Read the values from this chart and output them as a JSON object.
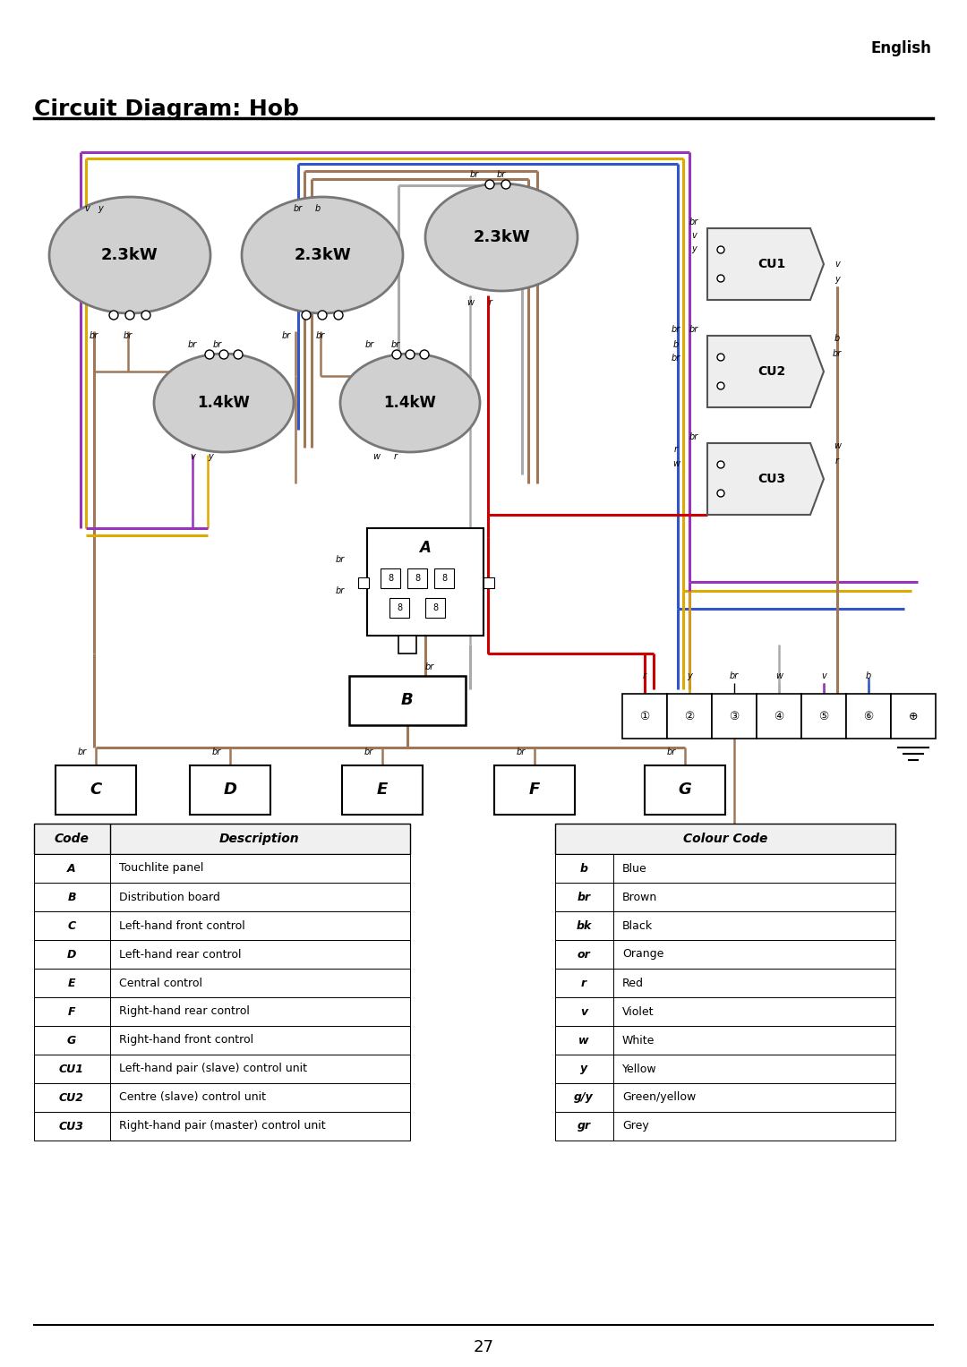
{
  "title": "Circuit Diagram: Hob",
  "lang_label": "English",
  "bg_color": "#ffffff",
  "colors": {
    "violet": "#9933BB",
    "yellow": "#DDAA00",
    "blue": "#3355CC",
    "brown": "#A07858",
    "red": "#CC0000",
    "white_wire": "#999999",
    "gray_wire": "#AAAAAA",
    "ellipse_fill": "#D0D0D0",
    "ellipse_edge": "#777777"
  },
  "code_table_rows": [
    [
      "A",
      "Touchlite panel"
    ],
    [
      "B",
      "Distribution board"
    ],
    [
      "C",
      "Left-hand front control"
    ],
    [
      "D",
      "Left-hand rear control"
    ],
    [
      "E",
      "Central control"
    ],
    [
      "F",
      "Right-hand rear control"
    ],
    [
      "G",
      "Right-hand front control"
    ],
    [
      "CU1",
      "Left-hand pair (slave) control unit"
    ],
    [
      "CU2",
      "Centre (slave) control unit"
    ],
    [
      "CU3",
      "Right-hand pair (master) control unit"
    ]
  ],
  "colour_table_rows": [
    [
      "b",
      "Blue"
    ],
    [
      "br",
      "Brown"
    ],
    [
      "bk",
      "Black"
    ],
    [
      "or",
      "Orange"
    ],
    [
      "r",
      "Red"
    ],
    [
      "v",
      "Violet"
    ],
    [
      "w",
      "White"
    ],
    [
      "y",
      "Yellow"
    ],
    [
      "g/y",
      "Green/yellow"
    ],
    [
      "gr",
      "Grey"
    ]
  ]
}
